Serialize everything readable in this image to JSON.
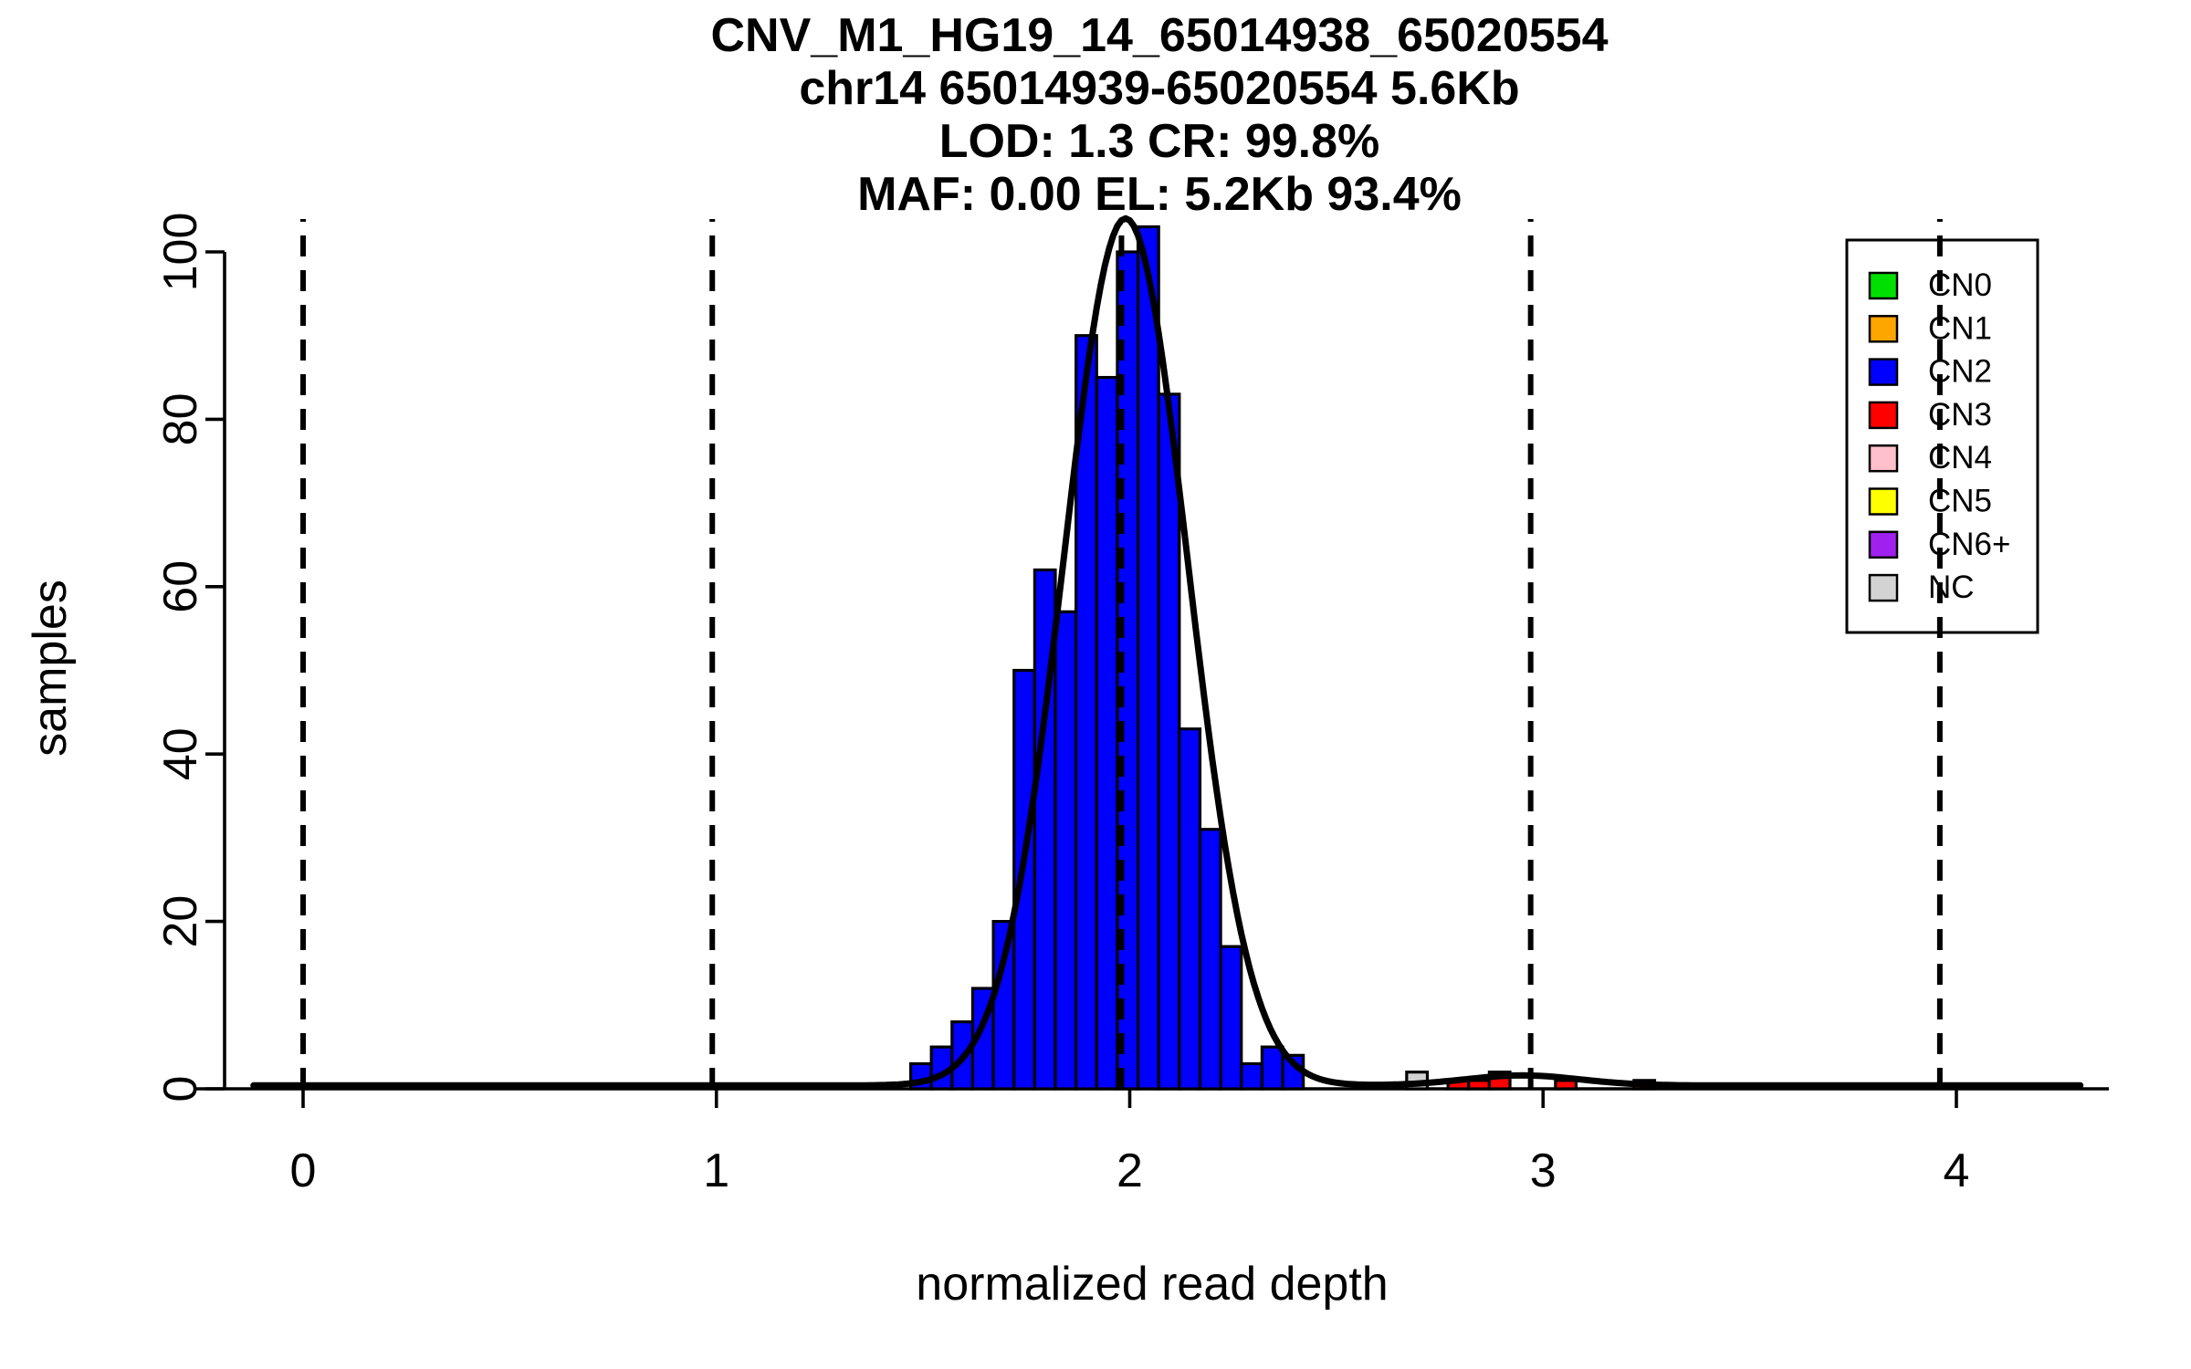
{
  "title": {
    "line1": "CNV_M1_HG19_14_65014938_65020554",
    "line2": "chr14 65014939-65020554 5.6Kb",
    "line3": "LOD: 1.3 CR: 99.8%",
    "line4": "MAF: 0.00 EL: 5.2Kb 93.4%"
  },
  "axes": {
    "x": {
      "label": "normalized read depth",
      "ticks": [
        "0",
        "1",
        "2",
        "3",
        "4"
      ],
      "tick_values": [
        0,
        1,
        2,
        3,
        4
      ],
      "range": [
        -0.26,
        4.37
      ]
    },
    "y": {
      "label": "samples",
      "ticks": [
        "0",
        "20",
        "40",
        "60",
        "80",
        "100"
      ],
      "tick_values": [
        0,
        20,
        40,
        60,
        80,
        100
      ],
      "range": [
        0,
        104
      ]
    }
  },
  "legend": {
    "entries": [
      {
        "label": "CN0",
        "color": "#00E000"
      },
      {
        "label": "CN1",
        "color": "#FFA500"
      },
      {
        "label": "CN2",
        "color": "#0000FF"
      },
      {
        "label": "CN3",
        "color": "#FF0000"
      },
      {
        "label": "CN4",
        "color": "#FFC0CB"
      },
      {
        "label": "CN5",
        "color": "#FFFF00"
      },
      {
        "label": "CN6+",
        "color": "#A020F0"
      },
      {
        "label": "NC",
        "color": "#D3D3D3"
      }
    ]
  },
  "chart_data": {
    "type": "bar",
    "subtype": "histogram",
    "bin_width": 0.05,
    "series": [
      {
        "name": "CN2",
        "color": "#0000FF",
        "bin_starts": [
          1.47,
          1.52,
          1.57,
          1.62,
          1.67,
          1.72,
          1.77,
          1.82,
          1.87,
          1.92,
          1.97,
          2.02,
          2.07,
          2.12,
          2.17,
          2.22,
          2.27,
          2.32,
          2.37
        ],
        "counts": [
          3,
          5,
          8,
          12,
          20,
          50,
          62,
          57,
          90,
          85,
          100,
          103,
          83,
          43,
          31,
          17,
          3,
          5,
          4
        ]
      },
      {
        "name": "NC",
        "color": "#D3D3D3",
        "bin_starts": [
          2.67
        ],
        "counts": [
          2
        ]
      },
      {
        "name": "CN3",
        "color": "#FF0000",
        "bin_starts": [
          2.77,
          2.82,
          2.87,
          3.03,
          3.22
        ],
        "counts": [
          1,
          1,
          2,
          1,
          1
        ]
      }
    ],
    "dashed_guide_lines_x": [
      0,
      0.99,
      1.98,
      2.97,
      3.96
    ],
    "fit_curve": {
      "color": "#000000",
      "baseline": 0.4,
      "components": [
        {
          "mean": 1.99,
          "sd": 0.15,
          "height": 103.6
        },
        {
          "mean": 2.95,
          "sd": 0.14,
          "height": 1.2
        }
      ]
    },
    "grid": false,
    "legend_position": "top-right",
    "title": "CNV_M1_HG19_14_65014938_65020554",
    "xlabel": "normalized read depth",
    "ylabel": "samples",
    "xlim": [
      -0.26,
      4.37
    ],
    "ylim": [
      0,
      100
    ]
  },
  "colors": {
    "axis": "#000000",
    "bar_border": "#000000",
    "text": "#000000",
    "legend_bg": "#FFFFFF"
  }
}
